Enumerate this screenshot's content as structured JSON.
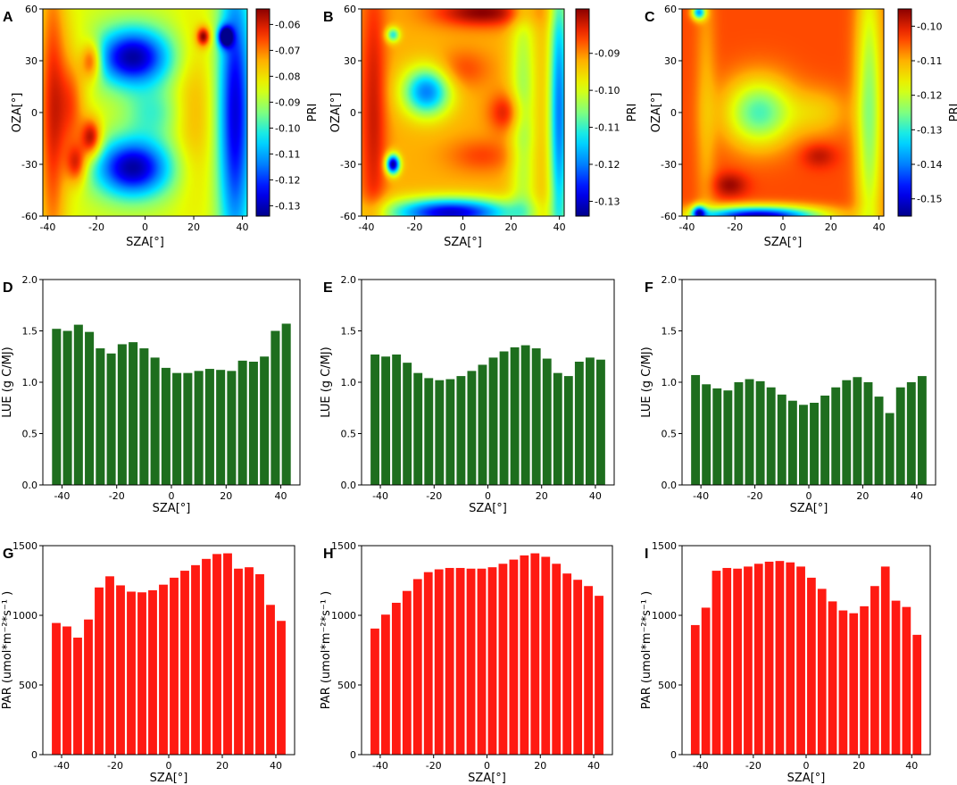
{
  "colors": {
    "lue_bar": "#1e6e1e",
    "par_bar": "#ff1a12",
    "colormap": [
      "#00008b",
      "#0000ff",
      "#0080ff",
      "#00e5ff",
      "#7fff7f",
      "#e5ff00",
      "#ffb000",
      "#ff3000",
      "#8b0000"
    ]
  },
  "chart_data": [
    {
      "panel": "A",
      "type": "heatmap",
      "xlabel": "SZA[°]",
      "ylabel": "OZA[°]",
      "colorbar_label": "PRI",
      "xlim": [
        -42,
        42
      ],
      "ylim": [
        -60,
        60
      ],
      "xticks": [
        "-40",
        "-20",
        "0",
        "20",
        "40"
      ],
      "xtick_values": [
        -40,
        -20,
        0,
        20,
        40
      ],
      "yticks": [
        "-60",
        "-30",
        "0",
        "30",
        "60"
      ],
      "ytick_values": [
        -60,
        -30,
        0,
        30,
        60
      ],
      "cbar_ticks": [
        "-0.06",
        "-0.07",
        "-0.08",
        "-0.09",
        "-0.10",
        "-0.11",
        "-0.12",
        "-0.13"
      ],
      "cbar_tick_values": [
        -0.06,
        -0.07,
        -0.08,
        -0.09,
        -0.1,
        -0.11,
        -0.12,
        -0.13
      ],
      "cbar_range": [
        -0.134,
        -0.054
      ],
      "base": -0.085,
      "features": [
        {
          "x": -38,
          "y": 0,
          "sx": 4,
          "sy": 60,
          "v": -0.062
        },
        {
          "x": -22,
          "y": 30,
          "sx": 3,
          "sy": 8,
          "v": -0.058
        },
        {
          "x": -22,
          "y": -15,
          "sx": 3,
          "sy": 8,
          "v": -0.056
        },
        {
          "x": -28,
          "y": -30,
          "sx": 3,
          "sy": 8,
          "v": -0.064
        },
        {
          "x": -30,
          "y": 5,
          "sx": 4,
          "sy": 25,
          "v": -0.068
        },
        {
          "x": -5,
          "y": 32,
          "sx": 11,
          "sy": 12,
          "v": -0.132
        },
        {
          "x": -5,
          "y": -32,
          "sx": 11,
          "sy": 12,
          "v": -0.132
        },
        {
          "x": 3,
          "y": 0,
          "sx": 8,
          "sy": 10,
          "v": -0.098
        },
        {
          "x": 20,
          "y": 0,
          "sx": 6,
          "sy": 35,
          "v": -0.075
        },
        {
          "x": 37,
          "y": 0,
          "sx": 5,
          "sy": 60,
          "v": -0.127
        },
        {
          "x": 24,
          "y": 44,
          "sx": 2,
          "sy": 4,
          "v": -0.056
        },
        {
          "x": 33,
          "y": 44,
          "sx": 2,
          "sy": 4,
          "v": -0.134
        }
      ]
    },
    {
      "panel": "B",
      "type": "heatmap",
      "xlabel": "SZA[°]",
      "ylabel": "OZA[°]",
      "colorbar_label": "PRI",
      "xlim": [
        -42,
        42
      ],
      "ylim": [
        -60,
        60
      ],
      "xticks": [
        "-40",
        "-20",
        "0",
        "20",
        "40"
      ],
      "xtick_values": [
        -40,
        -20,
        0,
        20,
        40
      ],
      "yticks": [
        "-60",
        "-30",
        "0",
        "30",
        "60"
      ],
      "ytick_values": [
        -60,
        -30,
        0,
        30,
        60
      ],
      "cbar_ticks": [
        "-0.09",
        "-0.10",
        "-0.11",
        "-0.12",
        "-0.13"
      ],
      "cbar_tick_values": [
        -0.09,
        -0.1,
        -0.11,
        -0.12,
        -0.13
      ],
      "cbar_range": [
        -0.134,
        -0.078
      ],
      "base": -0.092,
      "features": [
        {
          "x": -37,
          "y": 0,
          "sx": 4,
          "sy": 60,
          "v": -0.082
        },
        {
          "x": 8,
          "y": 58,
          "sx": 14,
          "sy": 6,
          "v": -0.078
        },
        {
          "x": -15,
          "y": 12,
          "sx": 7,
          "sy": 10,
          "v": -0.12
        },
        {
          "x": -29,
          "y": -30,
          "sx": 2,
          "sy": 4,
          "v": -0.134
        },
        {
          "x": -29,
          "y": 45,
          "sx": 2,
          "sy": 3,
          "v": -0.112
        },
        {
          "x": -5,
          "y": -58,
          "sx": 18,
          "sy": 6,
          "v": -0.13
        },
        {
          "x": 25,
          "y": 0,
          "sx": 4,
          "sy": 60,
          "v": -0.104
        },
        {
          "x": 40,
          "y": 0,
          "sx": 3,
          "sy": 60,
          "v": -0.12
        },
        {
          "x": 18,
          "y": 0,
          "sx": 5,
          "sy": 8,
          "v": -0.082
        },
        {
          "x": 8,
          "y": -25,
          "sx": 10,
          "sy": 7,
          "v": -0.086
        },
        {
          "x": 0,
          "y": 25,
          "sx": 8,
          "sy": 8,
          "v": -0.086
        }
      ]
    },
    {
      "panel": "C",
      "type": "heatmap",
      "xlabel": "SZA[°]",
      "ylabel": "OZA[°]",
      "colorbar_label": "PRI",
      "xlim": [
        -42,
        42
      ],
      "ylim": [
        -60,
        60
      ],
      "xticks": [
        "-40",
        "-20",
        "0",
        "20",
        "40"
      ],
      "xtick_values": [
        -40,
        -20,
        0,
        20,
        40
      ],
      "yticks": [
        "-60",
        "-30",
        "0",
        "30",
        "60"
      ],
      "ytick_values": [
        -60,
        -30,
        0,
        30,
        60
      ],
      "cbar_ticks": [
        "-0.10",
        "-0.11",
        "-0.12",
        "-0.13",
        "-0.14",
        "-0.15"
      ],
      "cbar_tick_values": [
        -0.1,
        -0.11,
        -0.12,
        -0.13,
        -0.14,
        -0.15
      ],
      "cbar_range": [
        -0.155,
        -0.095
      ],
      "base": -0.104,
      "features": [
        {
          "x": -10,
          "y": 0,
          "sx": 10,
          "sy": 14,
          "v": -0.128
        },
        {
          "x": 15,
          "y": 0,
          "sx": 9,
          "sy": 10,
          "v": -0.112
        },
        {
          "x": 36,
          "y": 0,
          "sx": 4,
          "sy": 60,
          "v": -0.124
        },
        {
          "x": -22,
          "y": -42,
          "sx": 5,
          "sy": 5,
          "v": -0.096
        },
        {
          "x": 15,
          "y": -25,
          "sx": 5,
          "sy": 5,
          "v": -0.098
        },
        {
          "x": -10,
          "y": -60,
          "sx": 18,
          "sy": 4,
          "v": -0.152
        },
        {
          "x": -35,
          "y": 58,
          "sx": 2,
          "sy": 3,
          "v": -0.135
        },
        {
          "x": -35,
          "y": -58,
          "sx": 2,
          "sy": 3,
          "v": -0.135
        },
        {
          "x": -32,
          "y": 0,
          "sx": 3,
          "sy": 60,
          "v": -0.11
        }
      ]
    },
    {
      "panel": "D",
      "type": "bar",
      "xlabel": "SZA[°]",
      "ylabel": "LUE (g C/MJ)",
      "x": [
        -42,
        -38,
        -34,
        -30,
        -26,
        -22,
        -18,
        -14,
        -10,
        -6,
        -2,
        2,
        6,
        10,
        14,
        18,
        22,
        26,
        30,
        34,
        38,
        42
      ],
      "values": [
        1.52,
        1.5,
        1.56,
        1.49,
        1.33,
        1.28,
        1.37,
        1.39,
        1.33,
        1.24,
        1.14,
        1.09,
        1.09,
        1.11,
        1.13,
        1.12,
        1.11,
        1.21,
        1.2,
        1.25,
        1.5,
        1.57
      ],
      "xlim": [
        -47,
        47
      ],
      "ylim": [
        0,
        2.0
      ],
      "xticks": [
        "-40",
        "-20",
        "0",
        "20",
        "40"
      ],
      "xtick_values": [
        -40,
        -20,
        0,
        20,
        40
      ],
      "yticks": [
        "0.0",
        "0.5",
        "1.0",
        "1.5",
        "2.0"
      ],
      "ytick_values": [
        0,
        0.5,
        1.0,
        1.5,
        2.0
      ]
    },
    {
      "panel": "E",
      "type": "bar",
      "xlabel": "SZA[°]",
      "ylabel": "LUE (g C/MJ)",
      "x": [
        -42,
        -38,
        -34,
        -30,
        -26,
        -22,
        -18,
        -14,
        -10,
        -6,
        -2,
        2,
        6,
        10,
        14,
        18,
        22,
        26,
        30,
        34,
        38,
        42
      ],
      "values": [
        1.27,
        1.25,
        1.27,
        1.19,
        1.09,
        1.04,
        1.02,
        1.03,
        1.06,
        1.11,
        1.17,
        1.24,
        1.3,
        1.34,
        1.36,
        1.33,
        1.23,
        1.09,
        1.06,
        1.2,
        1.24,
        1.22
      ],
      "xlim": [
        -47,
        47
      ],
      "ylim": [
        0,
        2.0
      ],
      "xticks": [
        "-40",
        "-20",
        "0",
        "20",
        "40"
      ],
      "xtick_values": [
        -40,
        -20,
        0,
        20,
        40
      ],
      "yticks": [
        "0.0",
        "0.5",
        "1.0",
        "1.5",
        "2.0"
      ],
      "ytick_values": [
        0,
        0.5,
        1.0,
        1.5,
        2.0
      ]
    },
    {
      "panel": "F",
      "type": "bar",
      "xlabel": "SZA[°]",
      "ylabel": "LUE (g C/MJ)",
      "x": [
        -42,
        -38,
        -34,
        -30,
        -26,
        -22,
        -18,
        -14,
        -10,
        -6,
        -2,
        2,
        6,
        10,
        14,
        18,
        22,
        26,
        30,
        34,
        38,
        42
      ],
      "values": [
        1.07,
        0.98,
        0.94,
        0.92,
        1.0,
        1.03,
        1.01,
        0.95,
        0.88,
        0.82,
        0.78,
        0.8,
        0.87,
        0.95,
        1.02,
        1.05,
        1.0,
        0.86,
        0.7,
        0.95,
        1.0,
        1.06
      ],
      "xlim": [
        -47,
        47
      ],
      "ylim": [
        0,
        2.0
      ],
      "xticks": [
        "-40",
        "-20",
        "0",
        "20",
        "40"
      ],
      "xtick_values": [
        -40,
        -20,
        0,
        20,
        40
      ],
      "yticks": [
        "0.0",
        "0.5",
        "1.0",
        "1.5",
        "2.0"
      ],
      "ytick_values": [
        0,
        0.5,
        1.0,
        1.5,
        2.0
      ]
    },
    {
      "panel": "G",
      "type": "bar",
      "xlabel": "SZA[°]",
      "ylabel": "PAR (umol*m⁻²*s⁻¹ )",
      "x": [
        -42,
        -38,
        -34,
        -30,
        -26,
        -22,
        -18,
        -14,
        -10,
        -6,
        -2,
        2,
        6,
        10,
        14,
        18,
        22,
        26,
        30,
        34,
        38,
        42
      ],
      "values": [
        945,
        920,
        840,
        970,
        1200,
        1280,
        1215,
        1170,
        1165,
        1180,
        1220,
        1270,
        1320,
        1360,
        1405,
        1440,
        1445,
        1335,
        1345,
        1295,
        1075,
        960
      ],
      "xlim": [
        -47,
        47
      ],
      "ylim": [
        0,
        1500
      ],
      "xticks": [
        "-40",
        "-20",
        "0",
        "20",
        "40"
      ],
      "xtick_values": [
        -40,
        -20,
        0,
        20,
        40
      ],
      "yticks": [
        "0",
        "500",
        "1000",
        "1500"
      ],
      "ytick_values": [
        0,
        500,
        1000,
        1500
      ]
    },
    {
      "panel": "H",
      "type": "bar",
      "xlabel": "SZA[°]",
      "ylabel": "PAR (umol*m⁻²*s⁻¹ )",
      "x": [
        -42,
        -38,
        -34,
        -30,
        -26,
        -22,
        -18,
        -14,
        -10,
        -6,
        -2,
        2,
        6,
        10,
        14,
        18,
        22,
        26,
        30,
        34,
        38,
        42
      ],
      "values": [
        905,
        1005,
        1090,
        1175,
        1260,
        1310,
        1330,
        1340,
        1340,
        1335,
        1335,
        1345,
        1370,
        1400,
        1430,
        1445,
        1420,
        1370,
        1300,
        1255,
        1210,
        1140
      ],
      "xlim": [
        -47,
        47
      ],
      "ylim": [
        0,
        1500
      ],
      "xticks": [
        "-40",
        "-20",
        "0",
        "20",
        "40"
      ],
      "xtick_values": [
        -40,
        -20,
        0,
        20,
        40
      ],
      "yticks": [
        "0",
        "500",
        "1000",
        "1500"
      ],
      "ytick_values": [
        0,
        500,
        1000,
        1500
      ]
    },
    {
      "panel": "I",
      "type": "bar",
      "xlabel": "SZA[°]",
      "ylabel": "PAR (umol*m⁻²*s⁻¹ )",
      "x": [
        -42,
        -38,
        -34,
        -30,
        -26,
        -22,
        -18,
        -14,
        -10,
        -6,
        -2,
        2,
        6,
        10,
        14,
        18,
        22,
        26,
        30,
        34,
        38,
        42
      ],
      "values": [
        930,
        1055,
        1320,
        1340,
        1335,
        1350,
        1370,
        1385,
        1390,
        1380,
        1350,
        1270,
        1190,
        1100,
        1035,
        1015,
        1065,
        1210,
        1350,
        1105,
        1060,
        860
      ],
      "xlim": [
        -47,
        47
      ],
      "ylim": [
        0,
        1500
      ],
      "xticks": [
        "-40",
        "-20",
        "0",
        "20",
        "40"
      ],
      "xtick_values": [
        -40,
        -20,
        0,
        20,
        40
      ],
      "yticks": [
        "0",
        "500",
        "1000",
        "1500"
      ],
      "ytick_values": [
        0,
        500,
        1000,
        1500
      ]
    }
  ]
}
